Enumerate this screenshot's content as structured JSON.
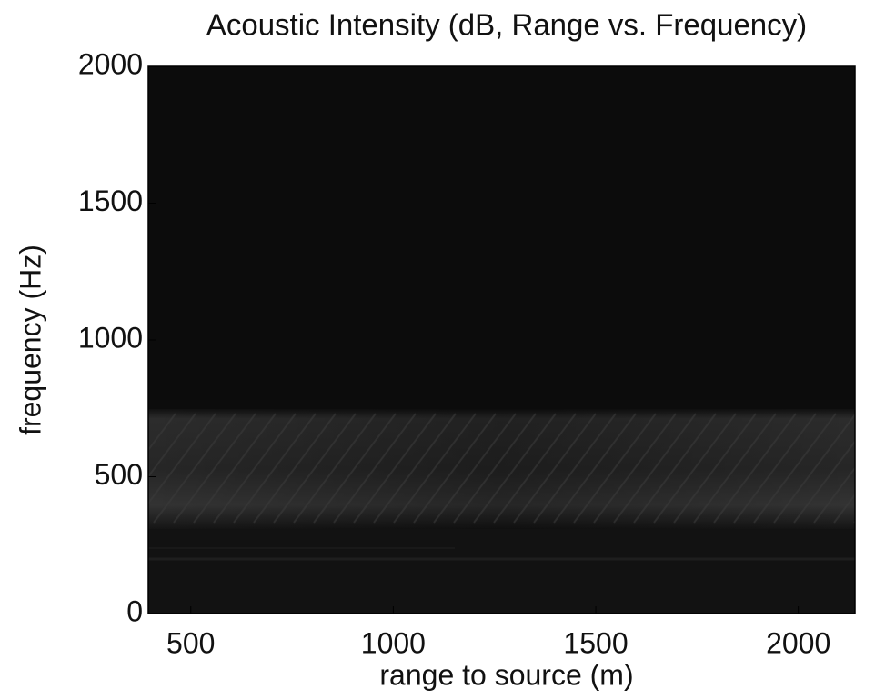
{
  "chart_data": {
    "type": "heatmap",
    "title": "Acoustic Intensity (dB, Range vs. Frequency)",
    "x_label": "range to source (m)",
    "y_label": "frequency (Hz)",
    "xlim": [
      395,
      2140
    ],
    "xticks": [
      500,
      1000,
      1500,
      2000
    ],
    "ylim": [
      0,
      2000
    ],
    "yticks": [
      0,
      500,
      1000,
      1500,
      2000
    ]
  }
}
